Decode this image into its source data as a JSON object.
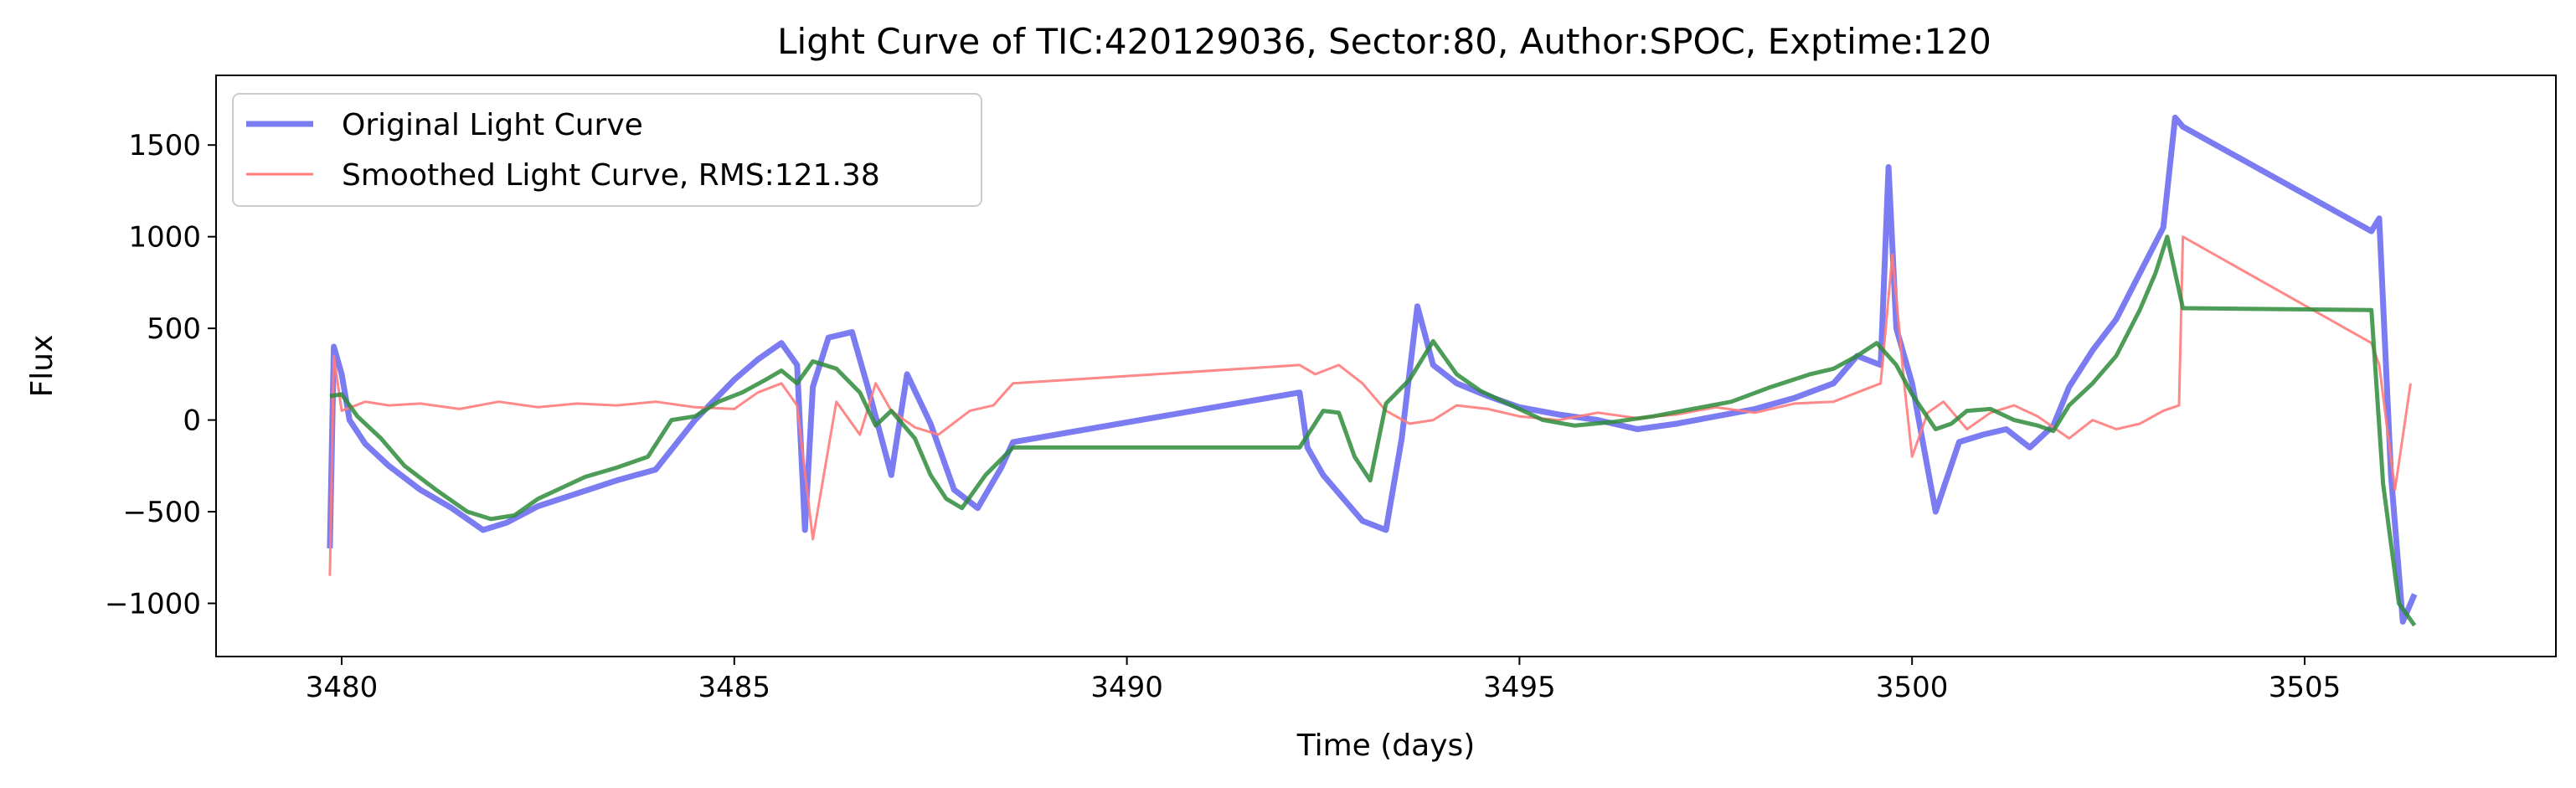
{
  "chart_data": {
    "type": "line",
    "title": "Light Curve of TIC:420129036, Sector:80, Author:SPOC, Exptime:120",
    "xlabel": "Time (days)",
    "ylabel": "Flux",
    "xlim": [
      3478.4,
      3508.2
    ],
    "ylim": [
      -1290,
      1880
    ],
    "xticks": [
      3480,
      3485,
      3490,
      3495,
      3500,
      3505
    ],
    "yticks": [
      -1000,
      -500,
      0,
      500,
      1000,
      1500
    ],
    "ytick_labels": [
      "−1000",
      "−500",
      "0",
      "500",
      "1000",
      "1500"
    ],
    "grid": false,
    "legend_position": "top-left",
    "series": [
      {
        "name": "Original Light Curve",
        "color": "#7b7bf2",
        "x": [
          3479.85,
          3479.9,
          3480.0,
          3480.1,
          3480.3,
          3480.6,
          3481.0,
          3481.4,
          3481.8,
          3482.1,
          3482.5,
          3483.0,
          3483.5,
          3484.0,
          3484.5,
          3485.0,
          3485.3,
          3485.6,
          3485.8,
          3485.9,
          3486.0,
          3486.2,
          3486.5,
          3486.7,
          3487.0,
          3487.2,
          3487.5,
          3487.8,
          3488.1,
          3488.4,
          3488.55,
          3492.2,
          3492.3,
          3492.5,
          3492.8,
          3493.0,
          3493.3,
          3493.5,
          3493.7,
          3493.9,
          3494.2,
          3494.6,
          3495.0,
          3495.5,
          3496.0,
          3496.5,
          3497.0,
          3497.5,
          3498.0,
          3498.5,
          3499.0,
          3499.3,
          3499.6,
          3499.7,
          3499.8,
          3500.0,
          3500.3,
          3500.6,
          3500.9,
          3501.2,
          3501.5,
          3501.8,
          3502.0,
          3502.3,
          3502.6,
          3502.9,
          3503.2,
          3503.35,
          3503.45,
          3505.85,
          3505.95,
          3506.1,
          3506.25,
          3506.4
        ],
        "values": [
          -700,
          400,
          250,
          0,
          -130,
          -250,
          -380,
          -480,
          -600,
          -560,
          -470,
          -400,
          -330,
          -270,
          0,
          220,
          330,
          420,
          300,
          -600,
          180,
          450,
          480,
          180,
          -300,
          250,
          -20,
          -380,
          -480,
          -260,
          -120,
          150,
          -150,
          -300,
          -450,
          -550,
          -600,
          -100,
          620,
          300,
          200,
          130,
          70,
          30,
          0,
          -50,
          -20,
          20,
          60,
          120,
          200,
          350,
          300,
          1380,
          500,
          200,
          -500,
          -120,
          -80,
          -50,
          -150,
          -30,
          180,
          380,
          550,
          800,
          1050,
          1650,
          1600,
          1030,
          1100,
          -300,
          -1100,
          -950
        ],
        "line_width": 7,
        "opacity": 1
      },
      {
        "name": "Smoothed Light Curve, RMS:121.38",
        "color": "#ff7b7b",
        "x": [
          3479.85,
          3479.9,
          3480.0,
          3480.3,
          3480.6,
          3481.0,
          3481.5,
          3482.0,
          3482.5,
          3483.0,
          3483.5,
          3484.0,
          3484.5,
          3485.0,
          3485.3,
          3485.6,
          3485.8,
          3486.0,
          3486.3,
          3486.6,
          3486.8,
          3487.0,
          3487.3,
          3487.6,
          3488.0,
          3488.3,
          3488.55,
          3492.2,
          3492.4,
          3492.7,
          3493.0,
          3493.3,
          3493.6,
          3493.9,
          3494.2,
          3494.6,
          3495.0,
          3495.5,
          3496.0,
          3496.5,
          3497.0,
          3497.5,
          3498.0,
          3498.5,
          3499.0,
          3499.3,
          3499.6,
          3499.75,
          3499.9,
          3500.0,
          3500.2,
          3500.4,
          3500.7,
          3501.0,
          3501.3,
          3501.6,
          3502.0,
          3502.3,
          3502.6,
          3502.9,
          3503.2,
          3503.4,
          3503.45,
          3505.85,
          3505.95,
          3506.15,
          3506.35
        ],
        "values": [
          -850,
          350,
          50,
          100,
          80,
          90,
          60,
          100,
          70,
          90,
          80,
          100,
          70,
          60,
          150,
          200,
          80,
          -650,
          100,
          -80,
          200,
          50,
          -40,
          -80,
          50,
          80,
          200,
          300,
          250,
          300,
          200,
          50,
          -20,
          0,
          80,
          60,
          20,
          0,
          40,
          10,
          30,
          70,
          40,
          90,
          100,
          150,
          200,
          900,
          200,
          -200,
          40,
          100,
          -50,
          40,
          80,
          20,
          -100,
          0,
          -50,
          -20,
          50,
          80,
          1000,
          420,
          300,
          -380,
          200
        ],
        "line_width": 3,
        "opacity": 0.9
      },
      {
        "name": "",
        "color": "#2e8b3a",
        "x": [
          3479.85,
          3480.0,
          3480.2,
          3480.5,
          3480.8,
          3481.2,
          3481.6,
          3481.9,
          3482.2,
          3482.5,
          3482.8,
          3483.1,
          3483.5,
          3483.9,
          3484.2,
          3484.5,
          3484.8,
          3485.1,
          3485.4,
          3485.6,
          3485.8,
          3486.0,
          3486.3,
          3486.6,
          3486.8,
          3487.0,
          3487.3,
          3487.5,
          3487.7,
          3487.9,
          3488.2,
          3488.55,
          3492.2,
          3492.5,
          3492.7,
          3492.9,
          3493.1,
          3493.3,
          3493.6,
          3493.9,
          3494.2,
          3494.5,
          3494.9,
          3495.3,
          3495.7,
          3496.2,
          3496.7,
          3497.2,
          3497.7,
          3498.2,
          3498.7,
          3499.0,
          3499.3,
          3499.55,
          3499.8,
          3500.0,
          3500.3,
          3500.5,
          3500.7,
          3501.0,
          3501.3,
          3501.6,
          3501.8,
          3502.0,
          3502.3,
          3502.6,
          3502.9,
          3503.1,
          3503.25,
          3503.45,
          3505.85,
          3506.0,
          3506.2,
          3506.4
        ],
        "values": [
          130,
          140,
          20,
          -100,
          -250,
          -380,
          -500,
          -540,
          -520,
          -430,
          -370,
          -310,
          -260,
          -200,
          0,
          20,
          100,
          150,
          220,
          270,
          200,
          320,
          280,
          150,
          -30,
          50,
          -100,
          -300,
          -430,
          -480,
          -300,
          -150,
          -150,
          50,
          40,
          -200,
          -330,
          90,
          220,
          430,
          250,
          160,
          80,
          0,
          -30,
          -10,
          20,
          60,
          100,
          180,
          250,
          280,
          350,
          420,
          300,
          140,
          -50,
          -20,
          50,
          60,
          0,
          -30,
          -60,
          80,
          200,
          350,
          600,
          800,
          1000,
          610,
          600,
          -350,
          -1000,
          -1120
        ],
        "line_width": 5,
        "opacity": 0.85
      }
    ]
  }
}
